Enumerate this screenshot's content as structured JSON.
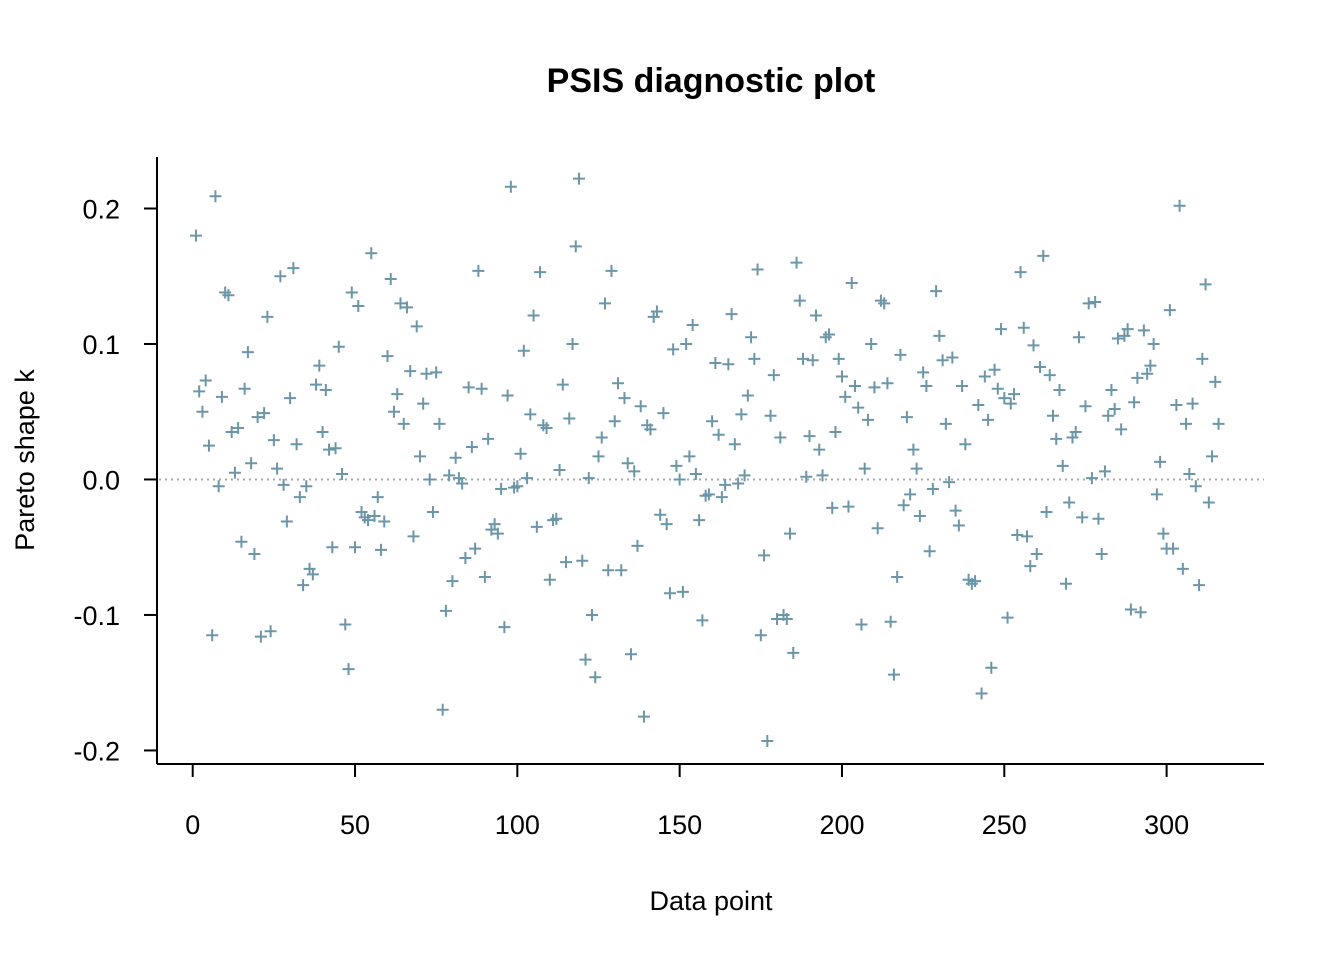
{
  "chart_data": {
    "type": "scatter",
    "title": "PSIS diagnostic plot",
    "xlabel": "Data point",
    "ylabel": "Pareto shape k",
    "xlim": [
      -11,
      330
    ],
    "ylim": [
      -0.21,
      0.238
    ],
    "xticks": [
      0,
      50,
      100,
      150,
      200,
      250,
      300
    ],
    "xtick_labels": [
      "0",
      "50",
      "100",
      "150",
      "200",
      "250",
      "300"
    ],
    "yticks": [
      -0.2,
      -0.1,
      0.0,
      0.1,
      0.2
    ],
    "ytick_labels": [
      "-0.2",
      "-0.1",
      "0.0",
      "0.1",
      "0.2"
    ],
    "reference_line": 0.0,
    "marker": "plus",
    "marker_color": "#6b96a8",
    "reference_color": "#a6a6a6",
    "axis_color": "#000000",
    "grid": false,
    "legend": "none",
    "series": [
      {
        "x": [
          1,
          2,
          3,
          4,
          5,
          6,
          7,
          8,
          9,
          10,
          11,
          12,
          13,
          14,
          15,
          16,
          17,
          18,
          19,
          20,
          21,
          22,
          23,
          24,
          25,
          26,
          27,
          28,
          29,
          30,
          31,
          32,
          33,
          34,
          35,
          36,
          37,
          38,
          39,
          40,
          41,
          42,
          43,
          44,
          45,
          46,
          47,
          48,
          49,
          50,
          51,
          52,
          53,
          54,
          55,
          56,
          57,
          58,
          59,
          60,
          61,
          62,
          63,
          64,
          65,
          66,
          67,
          68,
          69,
          70,
          71,
          72,
          73,
          74,
          75,
          76,
          77,
          78,
          79,
          80,
          81,
          82,
          83,
          84,
          85,
          86,
          87,
          88,
          89,
          90,
          91,
          92,
          93,
          94,
          95,
          96,
          97,
          98,
          99,
          100,
          101,
          102,
          103,
          104,
          105,
          106,
          107,
          108,
          109,
          110,
          111,
          112,
          113,
          114,
          115,
          116,
          117,
          118,
          119,
          120,
          121,
          122,
          123,
          124,
          125,
          126,
          127,
          128,
          129,
          130,
          131,
          132,
          133,
          134,
          135,
          136,
          137,
          138,
          139,
          140,
          141,
          142,
          143,
          144,
          145,
          146,
          147,
          148,
          149,
          150,
          151,
          152,
          153,
          154,
          155,
          156,
          157,
          158,
          159,
          160,
          161,
          162,
          163,
          164,
          165,
          166,
          167,
          168,
          169,
          170,
          171,
          172,
          173,
          174,
          175,
          176,
          177,
          178,
          179,
          180,
          181,
          182,
          183,
          184,
          185,
          186,
          187,
          188,
          189,
          190,
          191,
          192,
          193,
          194,
          195,
          196,
          197,
          198,
          199,
          200,
          201,
          202,
          203,
          204,
          205,
          206,
          207,
          208,
          209,
          210,
          211,
          212,
          213,
          214,
          215,
          216,
          217,
          218,
          219,
          220,
          221,
          222,
          223,
          224,
          225,
          226,
          227,
          228,
          229,
          230,
          231,
          232,
          233,
          234,
          235,
          236,
          237,
          238,
          239,
          240,
          241,
          242,
          243,
          244,
          245,
          246,
          247,
          248,
          249,
          250,
          251,
          252,
          253,
          254,
          255,
          256,
          257,
          258,
          259,
          260,
          261,
          262,
          263,
          264,
          265,
          266,
          267,
          268,
          269,
          270,
          271,
          272,
          273,
          274,
          275,
          276,
          277,
          278,
          279,
          280,
          281,
          282,
          283,
          284,
          285,
          286,
          287,
          288,
          289,
          290,
          291,
          292,
          293,
          294,
          295,
          296,
          297,
          298,
          299,
          300,
          301,
          302,
          303,
          304,
          305,
          306,
          307,
          308,
          309,
          310,
          311,
          312,
          313,
          314,
          315,
          316
        ],
        "y": [
          0.18,
          0.065,
          0.05,
          0.073,
          0.025,
          -0.115,
          0.209,
          -0.005,
          0.061,
          0.138,
          0.136,
          0.035,
          0.005,
          0.038,
          -0.046,
          0.067,
          0.094,
          0.012,
          -0.055,
          0.046,
          -0.116,
          0.049,
          0.12,
          -0.112,
          0.029,
          0.008,
          0.15,
          -0.004,
          -0.031,
          0.06,
          0.156,
          0.026,
          -0.013,
          -0.078,
          -0.005,
          -0.066,
          -0.07,
          0.07,
          0.084,
          0.035,
          0.066,
          0.022,
          -0.05,
          0.023,
          0.098,
          0.004,
          -0.107,
          -0.14,
          0.138,
          -0.05,
          0.128,
          -0.024,
          -0.028,
          -0.03,
          0.167,
          -0.027,
          -0.013,
          -0.052,
          -0.031,
          0.091,
          0.148,
          0.05,
          0.063,
          0.13,
          0.041,
          0.127,
          0.08,
          -0.042,
          0.113,
          0.017,
          0.056,
          0.078,
          0.0,
          -0.024,
          0.079,
          0.041,
          -0.17,
          -0.097,
          0.003,
          -0.075,
          0.016,
          0.001,
          -0.003,
          -0.058,
          0.068,
          0.024,
          -0.051,
          0.154,
          0.067,
          -0.072,
          0.03,
          -0.037,
          -0.033,
          -0.04,
          -0.007,
          -0.109,
          0.062,
          0.216,
          -0.006,
          -0.005,
          0.019,
          0.095,
          0.001,
          0.048,
          0.121,
          -0.035,
          0.153,
          0.04,
          0.038,
          -0.074,
          -0.03,
          -0.029,
          0.007,
          0.07,
          -0.061,
          0.045,
          0.1,
          0.172,
          0.222,
          -0.06,
          -0.133,
          0.001,
          -0.1,
          -0.146,
          0.017,
          0.031,
          0.13,
          -0.067,
          0.154,
          0.043,
          0.071,
          -0.067,
          0.06,
          0.012,
          -0.129,
          0.006,
          -0.049,
          0.054,
          -0.175,
          0.04,
          0.037,
          0.12,
          0.124,
          -0.026,
          0.049,
          -0.033,
          -0.084,
          0.096,
          0.01,
          0.0,
          -0.083,
          0.1,
          0.017,
          0.114,
          0.004,
          -0.03,
          -0.104,
          -0.012,
          -0.011,
          0.043,
          0.086,
          0.033,
          -0.013,
          -0.004,
          0.085,
          0.122,
          0.026,
          -0.003,
          0.048,
          0.003,
          0.062,
          0.105,
          0.089,
          0.155,
          -0.115,
          -0.056,
          -0.193,
          0.047,
          0.077,
          -0.103,
          0.031,
          -0.1,
          -0.103,
          -0.04,
          -0.128,
          0.16,
          0.132,
          0.089,
          0.002,
          0.032,
          0.088,
          0.121,
          0.022,
          0.003,
          0.105,
          0.107,
          -0.021,
          0.035,
          0.089,
          0.076,
          0.061,
          -0.02,
          0.145,
          0.069,
          0.053,
          -0.107,
          0.008,
          0.044,
          0.1,
          0.068,
          -0.036,
          0.132,
          0.13,
          0.071,
          -0.105,
          -0.144,
          -0.072,
          0.092,
          -0.019,
          0.046,
          -0.011,
          0.022,
          0.008,
          -0.027,
          0.079,
          0.069,
          -0.053,
          -0.007,
          0.139,
          0.106,
          0.088,
          0.041,
          -0.002,
          0.09,
          -0.023,
          -0.034,
          0.069,
          0.026,
          -0.074,
          -0.077,
          -0.075,
          0.055,
          -0.158,
          0.076,
          0.044,
          -0.139,
          0.081,
          0.067,
          0.111,
          0.06,
          -0.102,
          0.056,
          0.063,
          -0.041,
          0.153,
          0.112,
          -0.042,
          -0.064,
          0.099,
          -0.055,
          0.083,
          0.165,
          -0.024,
          0.077,
          0.047,
          0.03,
          0.066,
          0.01,
          -0.077,
          -0.017,
          0.031,
          0.035,
          0.105,
          -0.028,
          0.054,
          0.13,
          0.001,
          0.131,
          -0.029,
          -0.055,
          0.006,
          0.047,
          0.066,
          0.052,
          0.104,
          0.037,
          0.106,
          0.111,
          -0.096,
          0.057,
          0.075,
          -0.098,
          0.11,
          0.078,
          0.084,
          0.1,
          -0.011,
          0.013,
          -0.04,
          -0.051,
          0.125,
          -0.051,
          0.055,
          0.202,
          -0.066,
          0.041,
          0.004,
          0.056,
          -0.005,
          -0.078,
          0.089,
          0.144,
          -0.017,
          0.017,
          0.072,
          0.041
        ]
      }
    ]
  }
}
